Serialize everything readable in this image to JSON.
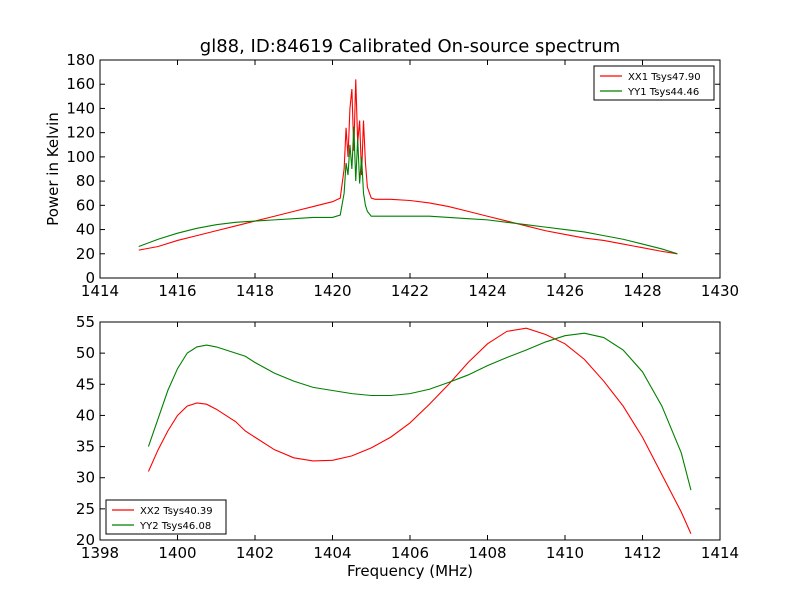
{
  "chart_data": [
    {
      "type": "line",
      "title": "gl88, ID:84619 Calibrated On-source spectrum",
      "xlabel": "",
      "ylabel": "Power in Kelvin",
      "xlim": [
        1414,
        1430
      ],
      "ylim": [
        0,
        180
      ],
      "xticks": [
        "1414",
        "1416",
        "1418",
        "1420",
        "1422",
        "1424",
        "1426",
        "1428",
        "1430"
      ],
      "yticks": [
        "0",
        "20",
        "40",
        "60",
        "80",
        "100",
        "120",
        "140",
        "160",
        "180"
      ],
      "legend_position": "top-right",
      "grid": false,
      "series": [
        {
          "name": "XX1 Tsys47.90",
          "color": "#ff0000",
          "x": [
            1415.0,
            1415.5,
            1416.0,
            1416.5,
            1417.0,
            1417.5,
            1418.0,
            1418.5,
            1419.0,
            1419.5,
            1420.0,
            1420.2,
            1420.3,
            1420.35,
            1420.4,
            1420.45,
            1420.5,
            1420.55,
            1420.6,
            1420.65,
            1420.7,
            1420.75,
            1420.8,
            1420.85,
            1420.9,
            1421.0,
            1421.1,
            1421.3,
            1421.5,
            1422.0,
            1422.5,
            1423.0,
            1423.5,
            1424.0,
            1424.5,
            1425.0,
            1425.5,
            1426.0,
            1426.5,
            1427.0,
            1427.5,
            1428.0,
            1428.5,
            1428.9
          ],
          "y": [
            23,
            26,
            31,
            35,
            39,
            43,
            47,
            51,
            55,
            59,
            63,
            66,
            90,
            124,
            100,
            140,
            156,
            105,
            164,
            112,
            130,
            85,
            130,
            95,
            75,
            66,
            65,
            65,
            65,
            64,
            62,
            59,
            55,
            51,
            47,
            43,
            39,
            36,
            33,
            31,
            28,
            25,
            22,
            20
          ]
        },
        {
          "name": "YY1 Tsys44.46",
          "color": "#008000",
          "x": [
            1415.0,
            1415.5,
            1416.0,
            1416.5,
            1417.0,
            1417.5,
            1418.0,
            1418.5,
            1419.0,
            1419.5,
            1420.0,
            1420.2,
            1420.3,
            1420.35,
            1420.4,
            1420.45,
            1420.5,
            1420.55,
            1420.6,
            1420.65,
            1420.7,
            1420.75,
            1420.8,
            1420.85,
            1420.9,
            1421.0,
            1421.1,
            1421.3,
            1421.5,
            1422.0,
            1422.5,
            1423.0,
            1423.5,
            1424.0,
            1424.5,
            1425.0,
            1425.5,
            1426.0,
            1426.5,
            1427.0,
            1427.5,
            1428.0,
            1428.5,
            1428.9
          ],
          "y": [
            26,
            32,
            37,
            41,
            44,
            46,
            47,
            48,
            49,
            50,
            50,
            52,
            70,
            95,
            85,
            110,
            90,
            125,
            80,
            115,
            78,
            100,
            70,
            60,
            55,
            51,
            51,
            51,
            51,
            51,
            51,
            50,
            49,
            48,
            46,
            44,
            42,
            40,
            38,
            35,
            32,
            28,
            24,
            20
          ]
        }
      ]
    },
    {
      "type": "line",
      "title": "",
      "xlabel": "Frequency (MHz)",
      "ylabel": "",
      "xlim": [
        1398,
        1414
      ],
      "ylim": [
        20,
        55
      ],
      "xticks": [
        "1398",
        "1400",
        "1402",
        "1404",
        "1406",
        "1408",
        "1410",
        "1412",
        "1414"
      ],
      "yticks": [
        "20",
        "25",
        "30",
        "35",
        "40",
        "45",
        "50",
        "55"
      ],
      "legend_position": "bottom-left",
      "grid": false,
      "series": [
        {
          "name": "XX2 Tsys40.39",
          "color": "#ff0000",
          "x": [
            1399.25,
            1399.5,
            1399.75,
            1400.0,
            1400.25,
            1400.5,
            1400.75,
            1401.0,
            1401.25,
            1401.5,
            1401.75,
            1402.0,
            1402.5,
            1403.0,
            1403.5,
            1404.0,
            1404.5,
            1405.0,
            1405.5,
            1406.0,
            1406.5,
            1407.0,
            1407.5,
            1408.0,
            1408.5,
            1409.0,
            1409.5,
            1410.0,
            1410.5,
            1411.0,
            1411.5,
            1412.0,
            1412.5,
            1413.0,
            1413.25
          ],
          "y": [
            31,
            34.5,
            37.5,
            40,
            41.5,
            42,
            41.8,
            41,
            40,
            39,
            37.5,
            36.5,
            34.5,
            33.2,
            32.7,
            32.8,
            33.5,
            34.8,
            36.5,
            38.8,
            41.8,
            45,
            48.5,
            51.5,
            53.5,
            54,
            53,
            51.5,
            49,
            45.5,
            41.5,
            36.5,
            30.5,
            24.5,
            21
          ]
        },
        {
          "name": "YY2 Tsys46.08",
          "color": "#008000",
          "x": [
            1399.25,
            1399.5,
            1399.75,
            1400.0,
            1400.25,
            1400.5,
            1400.75,
            1401.0,
            1401.25,
            1401.5,
            1401.75,
            1402.0,
            1402.5,
            1403.0,
            1403.5,
            1404.0,
            1404.5,
            1405.0,
            1405.5,
            1406.0,
            1406.5,
            1407.0,
            1407.5,
            1408.0,
            1408.5,
            1409.0,
            1409.5,
            1410.0,
            1410.5,
            1411.0,
            1411.5,
            1412.0,
            1412.5,
            1413.0,
            1413.25
          ],
          "y": [
            35,
            39.5,
            44,
            47.5,
            50,
            51,
            51.3,
            51,
            50.5,
            50,
            49.5,
            48.5,
            46.8,
            45.5,
            44.5,
            44,
            43.5,
            43.2,
            43.2,
            43.5,
            44.2,
            45.3,
            46.5,
            48,
            49.3,
            50.5,
            51.8,
            52.8,
            53.2,
            52.5,
            50.5,
            47,
            41.5,
            34,
            28
          ]
        }
      ]
    }
  ]
}
